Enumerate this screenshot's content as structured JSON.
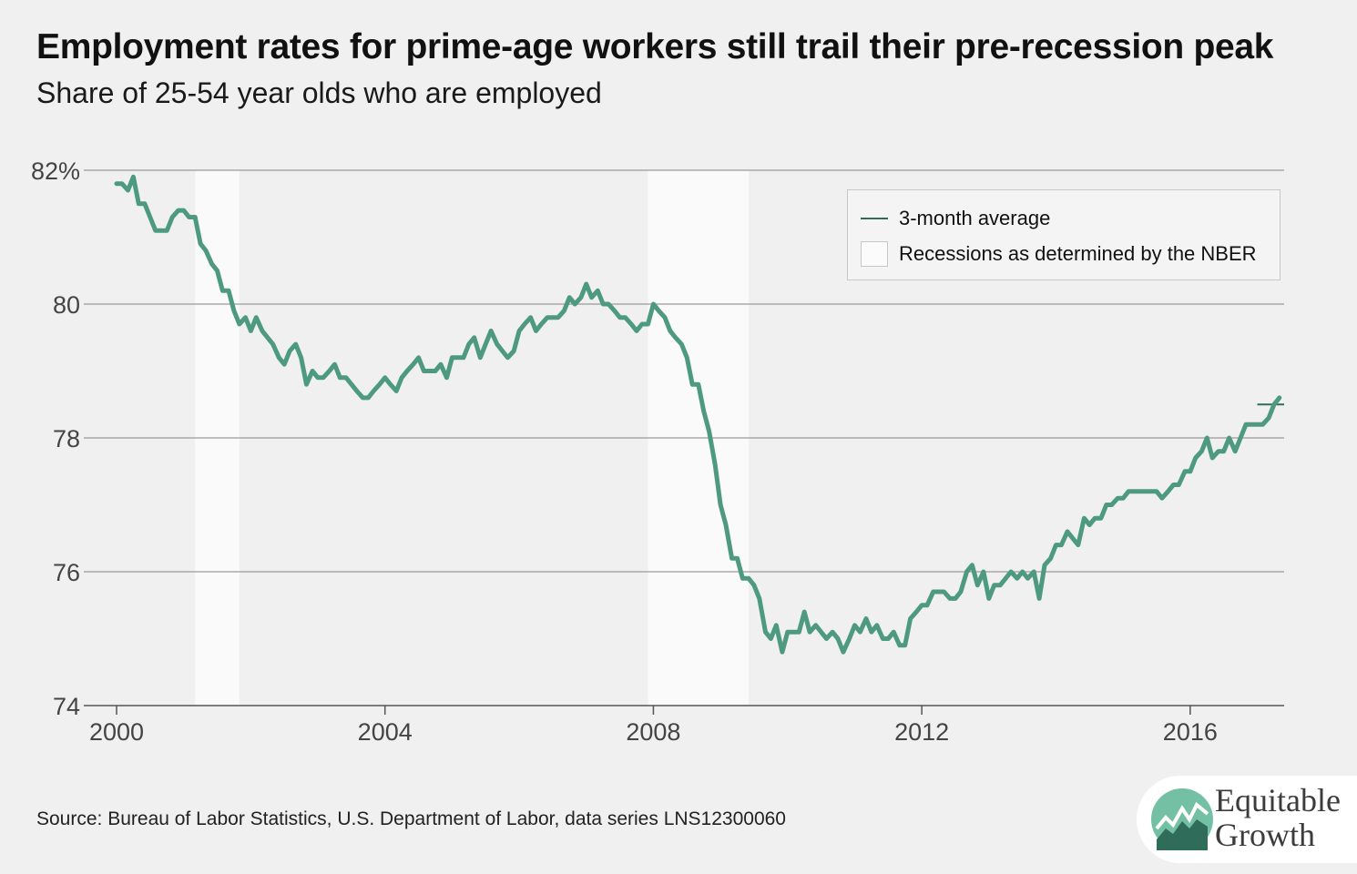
{
  "chart_data": {
    "type": "line",
    "title": "Employment rates for prime-age workers still trail their pre-recession peak",
    "subtitle": "Share of 25-54 year olds who are employed",
    "source": "Source: Bureau of Labor Statistics, U.S. Department of Labor, data series LNS12300060",
    "y_ticks": [
      "82%",
      "80",
      "78",
      "76",
      "74"
    ],
    "y_tick_values": [
      82,
      80,
      78,
      76,
      74
    ],
    "x_ticks": [
      "2000",
      "2004",
      "2008",
      "2012",
      "2016"
    ],
    "x_tick_values": [
      2000,
      2004,
      2008,
      2012,
      2016
    ],
    "xlim": [
      2000,
      2017.4
    ],
    "ylim": [
      74,
      82
    ],
    "grid": true,
    "legend_position": "top-right",
    "legend": {
      "line_label": "3-month average",
      "recession_label": "Recessions as determined by the NBER"
    },
    "recessions": [
      [
        2001.17,
        2001.83
      ],
      [
        2007.92,
        2009.42
      ]
    ],
    "reference_line": {
      "y": 78.5,
      "x": [
        2017.0,
        2017.4
      ],
      "color": "#2f6d5a"
    },
    "series": [
      {
        "name": "3-month average",
        "color": "#4e9a80",
        "x": [
          2000.0,
          2000.08,
          2000.17,
          2000.25,
          2000.33,
          2000.42,
          2000.5,
          2000.58,
          2000.67,
          2000.75,
          2000.83,
          2000.92,
          2001.0,
          2001.08,
          2001.17,
          2001.25,
          2001.33,
          2001.42,
          2001.5,
          2001.58,
          2001.67,
          2001.75,
          2001.83,
          2001.92,
          2002.0,
          2002.08,
          2002.17,
          2002.25,
          2002.33,
          2002.42,
          2002.5,
          2002.58,
          2002.67,
          2002.75,
          2002.83,
          2002.92,
          2003.0,
          2003.08,
          2003.17,
          2003.25,
          2003.33,
          2003.42,
          2003.5,
          2003.58,
          2003.67,
          2003.75,
          2003.83,
          2003.92,
          2004.0,
          2004.08,
          2004.17,
          2004.25,
          2004.33,
          2004.42,
          2004.5,
          2004.58,
          2004.67,
          2004.75,
          2004.83,
          2004.92,
          2005.0,
          2005.08,
          2005.17,
          2005.25,
          2005.33,
          2005.42,
          2005.5,
          2005.58,
          2005.67,
          2005.75,
          2005.83,
          2005.92,
          2006.0,
          2006.08,
          2006.17,
          2006.25,
          2006.33,
          2006.42,
          2006.5,
          2006.58,
          2006.67,
          2006.75,
          2006.83,
          2006.92,
          2007.0,
          2007.08,
          2007.17,
          2007.25,
          2007.33,
          2007.42,
          2007.5,
          2007.58,
          2007.67,
          2007.75,
          2007.83,
          2007.92,
          2008.0,
          2008.08,
          2008.17,
          2008.25,
          2008.33,
          2008.42,
          2008.5,
          2008.58,
          2008.67,
          2008.75,
          2008.83,
          2008.92,
          2009.0,
          2009.08,
          2009.17,
          2009.25,
          2009.33,
          2009.42,
          2009.5,
          2009.58,
          2009.67,
          2009.75,
          2009.83,
          2009.92,
          2010.0,
          2010.08,
          2010.17,
          2010.25,
          2010.33,
          2010.42,
          2010.5,
          2010.58,
          2010.67,
          2010.75,
          2010.83,
          2010.92,
          2011.0,
          2011.08,
          2011.17,
          2011.25,
          2011.33,
          2011.42,
          2011.5,
          2011.58,
          2011.67,
          2011.75,
          2011.83,
          2011.92,
          2012.0,
          2012.08,
          2012.17,
          2012.25,
          2012.33,
          2012.42,
          2012.5,
          2012.58,
          2012.67,
          2012.75,
          2012.83,
          2012.92,
          2013.0,
          2013.08,
          2013.17,
          2013.25,
          2013.33,
          2013.42,
          2013.5,
          2013.58,
          2013.67,
          2013.75,
          2013.83,
          2013.92,
          2014.0,
          2014.08,
          2014.17,
          2014.25,
          2014.33,
          2014.42,
          2014.5,
          2014.58,
          2014.67,
          2014.75,
          2014.83,
          2014.92,
          2015.0,
          2015.08,
          2015.17,
          2015.25,
          2015.33,
          2015.42,
          2015.5,
          2015.58,
          2015.67,
          2015.75,
          2015.83,
          2015.92,
          2016.0,
          2016.08,
          2016.17,
          2016.25,
          2016.33,
          2016.42,
          2016.5,
          2016.58,
          2016.67,
          2016.75,
          2016.83,
          2016.92,
          2017.0,
          2017.08,
          2017.17,
          2017.25,
          2017.33
        ],
        "values": [
          81.8,
          81.8,
          81.7,
          81.9,
          81.5,
          81.5,
          81.3,
          81.1,
          81.1,
          81.1,
          81.3,
          81.4,
          81.4,
          81.3,
          81.3,
          80.9,
          80.8,
          80.6,
          80.5,
          80.2,
          80.2,
          79.9,
          79.7,
          79.8,
          79.6,
          79.8,
          79.6,
          79.5,
          79.4,
          79.2,
          79.1,
          79.3,
          79.4,
          79.2,
          78.8,
          79.0,
          78.9,
          78.9,
          79.0,
          79.1,
          78.9,
          78.9,
          78.8,
          78.7,
          78.6,
          78.6,
          78.7,
          78.8,
          78.9,
          78.8,
          78.7,
          78.9,
          79.0,
          79.1,
          79.2,
          79.0,
          79.0,
          79.0,
          79.1,
          78.9,
          79.2,
          79.2,
          79.2,
          79.4,
          79.5,
          79.2,
          79.4,
          79.6,
          79.4,
          79.3,
          79.2,
          79.3,
          79.6,
          79.7,
          79.8,
          79.6,
          79.7,
          79.8,
          79.8,
          79.8,
          79.9,
          80.1,
          80.0,
          80.1,
          80.3,
          80.1,
          80.2,
          80.0,
          80.0,
          79.9,
          79.8,
          79.8,
          79.7,
          79.6,
          79.7,
          79.7,
          80.0,
          79.9,
          79.8,
          79.6,
          79.5,
          79.4,
          79.2,
          78.8,
          78.8,
          78.4,
          78.1,
          77.6,
          77.0,
          76.7,
          76.2,
          76.2,
          75.9,
          75.9,
          75.8,
          75.6,
          75.1,
          75.0,
          75.2,
          74.8,
          75.1,
          75.1,
          75.1,
          75.4,
          75.1,
          75.2,
          75.1,
          75.0,
          75.1,
          75.0,
          74.8,
          75.0,
          75.2,
          75.1,
          75.3,
          75.1,
          75.2,
          75.0,
          75.0,
          75.1,
          74.9,
          74.9,
          75.3,
          75.4,
          75.5,
          75.5,
          75.7,
          75.7,
          75.7,
          75.6,
          75.6,
          75.7,
          76.0,
          76.1,
          75.8,
          76.0,
          75.6,
          75.8,
          75.8,
          75.9,
          76.0,
          75.9,
          76.0,
          75.9,
          76.0,
          75.6,
          76.1,
          76.2,
          76.4,
          76.4,
          76.6,
          76.5,
          76.4,
          76.8,
          76.7,
          76.8,
          76.8,
          77.0,
          77.0,
          77.1,
          77.1,
          77.2,
          77.2,
          77.2,
          77.2,
          77.2,
          77.2,
          77.1,
          77.2,
          77.3,
          77.3,
          77.5,
          77.5,
          77.7,
          77.8,
          78.0,
          77.7,
          77.8,
          77.8,
          78.0,
          77.8,
          78.0,
          78.2,
          78.2,
          78.2,
          78.2,
          78.3,
          78.5,
          78.6
        ]
      }
    ]
  },
  "brand": {
    "line1": "Equitable",
    "line2": "Growth"
  }
}
